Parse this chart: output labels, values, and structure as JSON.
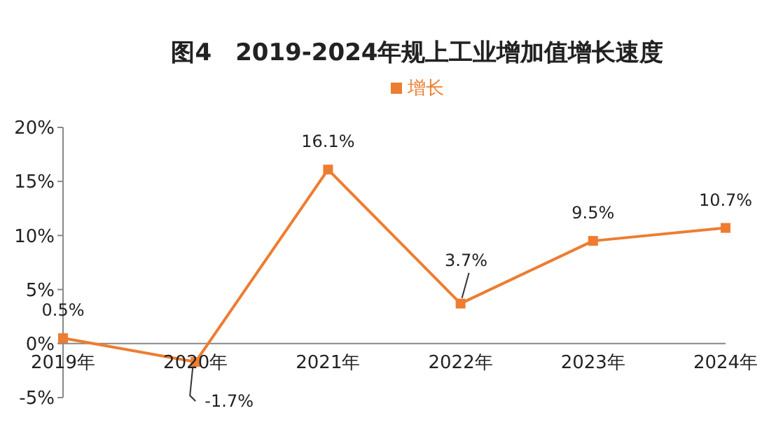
{
  "chart_data": {
    "type": "line",
    "title": "图4　2019-2024年规上工业增加值增长速度",
    "categories": [
      "2019年",
      "2020年",
      "2021年",
      "2022年",
      "2023年",
      "2024年"
    ],
    "series": [
      {
        "name": "增长",
        "color": "#ed7d31",
        "values": [
          0.5,
          -1.7,
          16.1,
          3.7,
          9.5,
          10.7
        ],
        "value_labels": [
          "0.5%",
          "-1.7%",
          "16.1%",
          "3.7%",
          "9.5%",
          "10.7%"
        ]
      }
    ],
    "ylim": [
      -5,
      20
    ],
    "yticks": [
      {
        "value": -5,
        "label": "-5%"
      },
      {
        "value": 0,
        "label": "0%"
      },
      {
        "value": 5,
        "label": "5%"
      },
      {
        "value": 10,
        "label": "10%"
      },
      {
        "value": 15,
        "label": "15%"
      },
      {
        "value": 20,
        "label": "20%"
      }
    ],
    "grid": false,
    "legend": "top",
    "marker": "square",
    "line_style": "solid"
  }
}
